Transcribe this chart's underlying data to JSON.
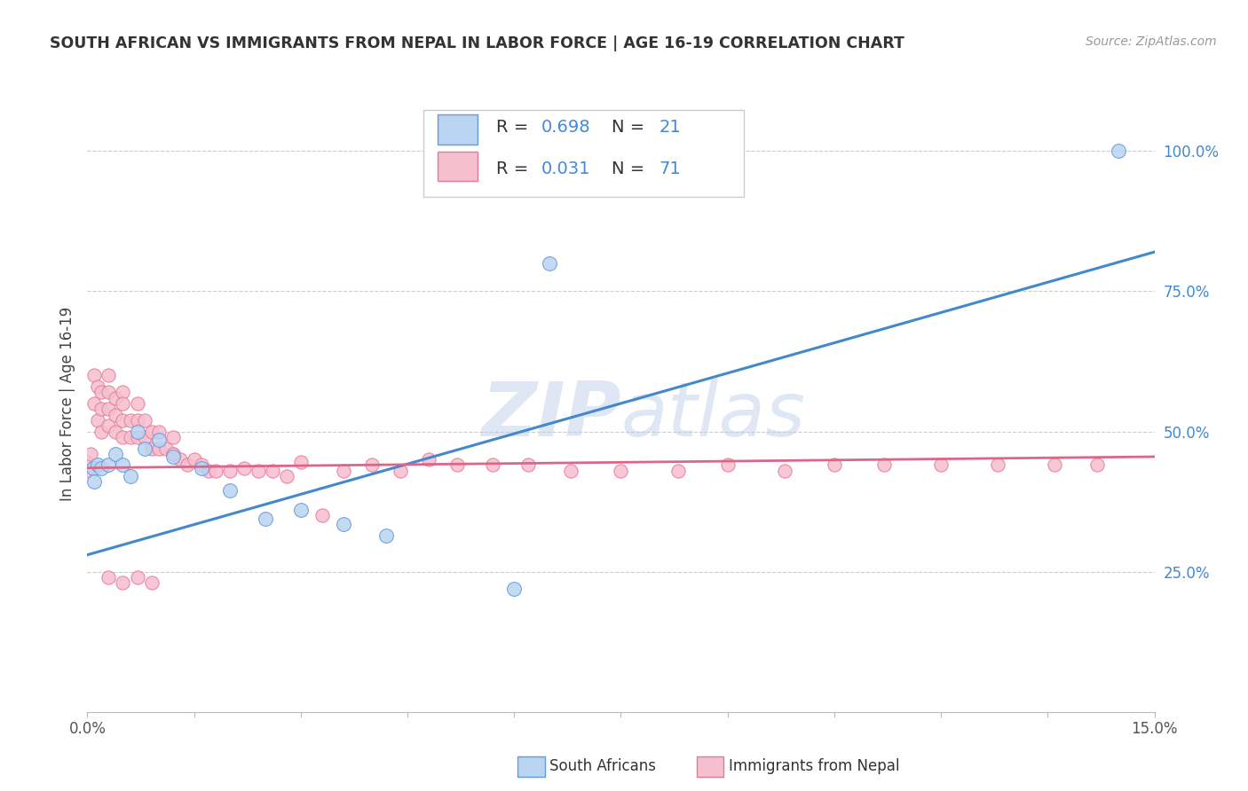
{
  "title": "SOUTH AFRICAN VS IMMIGRANTS FROM NEPAL IN LABOR FORCE | AGE 16-19 CORRELATION CHART",
  "source": "Source: ZipAtlas.com",
  "ylabel": "In Labor Force | Age 16-19",
  "xlim": [
    0.0,
    0.15
  ],
  "ylim": [
    0.0,
    1.1
  ],
  "ytick_vals": [
    0.25,
    0.5,
    0.75,
    1.0
  ],
  "ytick_labels": [
    "25.0%",
    "50.0%",
    "75.0%",
    "100.0%"
  ],
  "xtick_vals": [
    0.0,
    0.015,
    0.03,
    0.045,
    0.06,
    0.075,
    0.09,
    0.105,
    0.12,
    0.135,
    0.15
  ],
  "xtick_labels": [
    "0.0%",
    "",
    "",
    "",
    "",
    "",
    "",
    "",
    "",
    "",
    "15.0%"
  ],
  "sa_R": "0.698",
  "sa_N": "21",
  "nepal_R": "0.031",
  "nepal_N": "71",
  "sa_face_color": "#b8d4f0",
  "sa_edge_color": "#6699dd",
  "nepal_face_color": "#f5bfcf",
  "nepal_edge_color": "#e8789a",
  "sa_line_color": "#4488cc",
  "nepal_line_color": "#dd6688",
  "text_blue": "#4488dd",
  "grid_color": "#cccccc",
  "bg_color": "#ffffff",
  "watermark_color": "#d5e5f5",
  "sa_line_x0": 0.0,
  "sa_line_y0": 0.28,
  "sa_line_x1": 0.15,
  "sa_line_y1": 0.82,
  "nepal_line_x0": 0.0,
  "nepal_line_y0": 0.435,
  "nepal_line_x1": 0.15,
  "nepal_line_y1": 0.455,
  "sa_scatter_x": [
    0.0008,
    0.001,
    0.0015,
    0.002,
    0.003,
    0.004,
    0.005,
    0.006,
    0.007,
    0.008,
    0.01,
    0.012,
    0.016,
    0.02,
    0.025,
    0.03,
    0.036,
    0.042,
    0.06,
    0.065,
    0.145
  ],
  "sa_scatter_y": [
    0.435,
    0.41,
    0.44,
    0.435,
    0.44,
    0.46,
    0.44,
    0.42,
    0.5,
    0.47,
    0.485,
    0.455,
    0.435,
    0.395,
    0.345,
    0.36,
    0.335,
    0.315,
    0.22,
    0.8,
    1.0
  ],
  "nepal_scatter_x": [
    0.0,
    0.0,
    0.0005,
    0.001,
    0.001,
    0.0015,
    0.0015,
    0.002,
    0.002,
    0.002,
    0.003,
    0.003,
    0.003,
    0.003,
    0.004,
    0.004,
    0.004,
    0.005,
    0.005,
    0.005,
    0.005,
    0.006,
    0.006,
    0.007,
    0.007,
    0.007,
    0.008,
    0.008,
    0.009,
    0.009,
    0.01,
    0.01,
    0.011,
    0.012,
    0.012,
    0.013,
    0.014,
    0.015,
    0.016,
    0.017,
    0.018,
    0.02,
    0.022,
    0.024,
    0.026,
    0.028,
    0.03,
    0.033,
    0.036,
    0.04,
    0.044,
    0.048,
    0.052,
    0.057,
    0.062,
    0.068,
    0.075,
    0.083,
    0.09,
    0.098,
    0.105,
    0.112,
    0.12,
    0.128,
    0.136,
    0.142,
    0.003,
    0.005,
    0.007,
    0.009,
    0.012
  ],
  "nepal_scatter_y": [
    0.445,
    0.43,
    0.46,
    0.6,
    0.55,
    0.58,
    0.52,
    0.57,
    0.54,
    0.5,
    0.6,
    0.57,
    0.54,
    0.51,
    0.56,
    0.53,
    0.5,
    0.57,
    0.55,
    0.52,
    0.49,
    0.52,
    0.49,
    0.55,
    0.52,
    0.49,
    0.52,
    0.49,
    0.5,
    0.47,
    0.5,
    0.47,
    0.47,
    0.49,
    0.46,
    0.45,
    0.44,
    0.45,
    0.44,
    0.43,
    0.43,
    0.43,
    0.435,
    0.43,
    0.43,
    0.42,
    0.445,
    0.35,
    0.43,
    0.44,
    0.43,
    0.45,
    0.44,
    0.44,
    0.44,
    0.43,
    0.43,
    0.43,
    0.44,
    0.43,
    0.44,
    0.44,
    0.44,
    0.44,
    0.44,
    0.44,
    0.24,
    0.23,
    0.24,
    0.23,
    0.46
  ]
}
